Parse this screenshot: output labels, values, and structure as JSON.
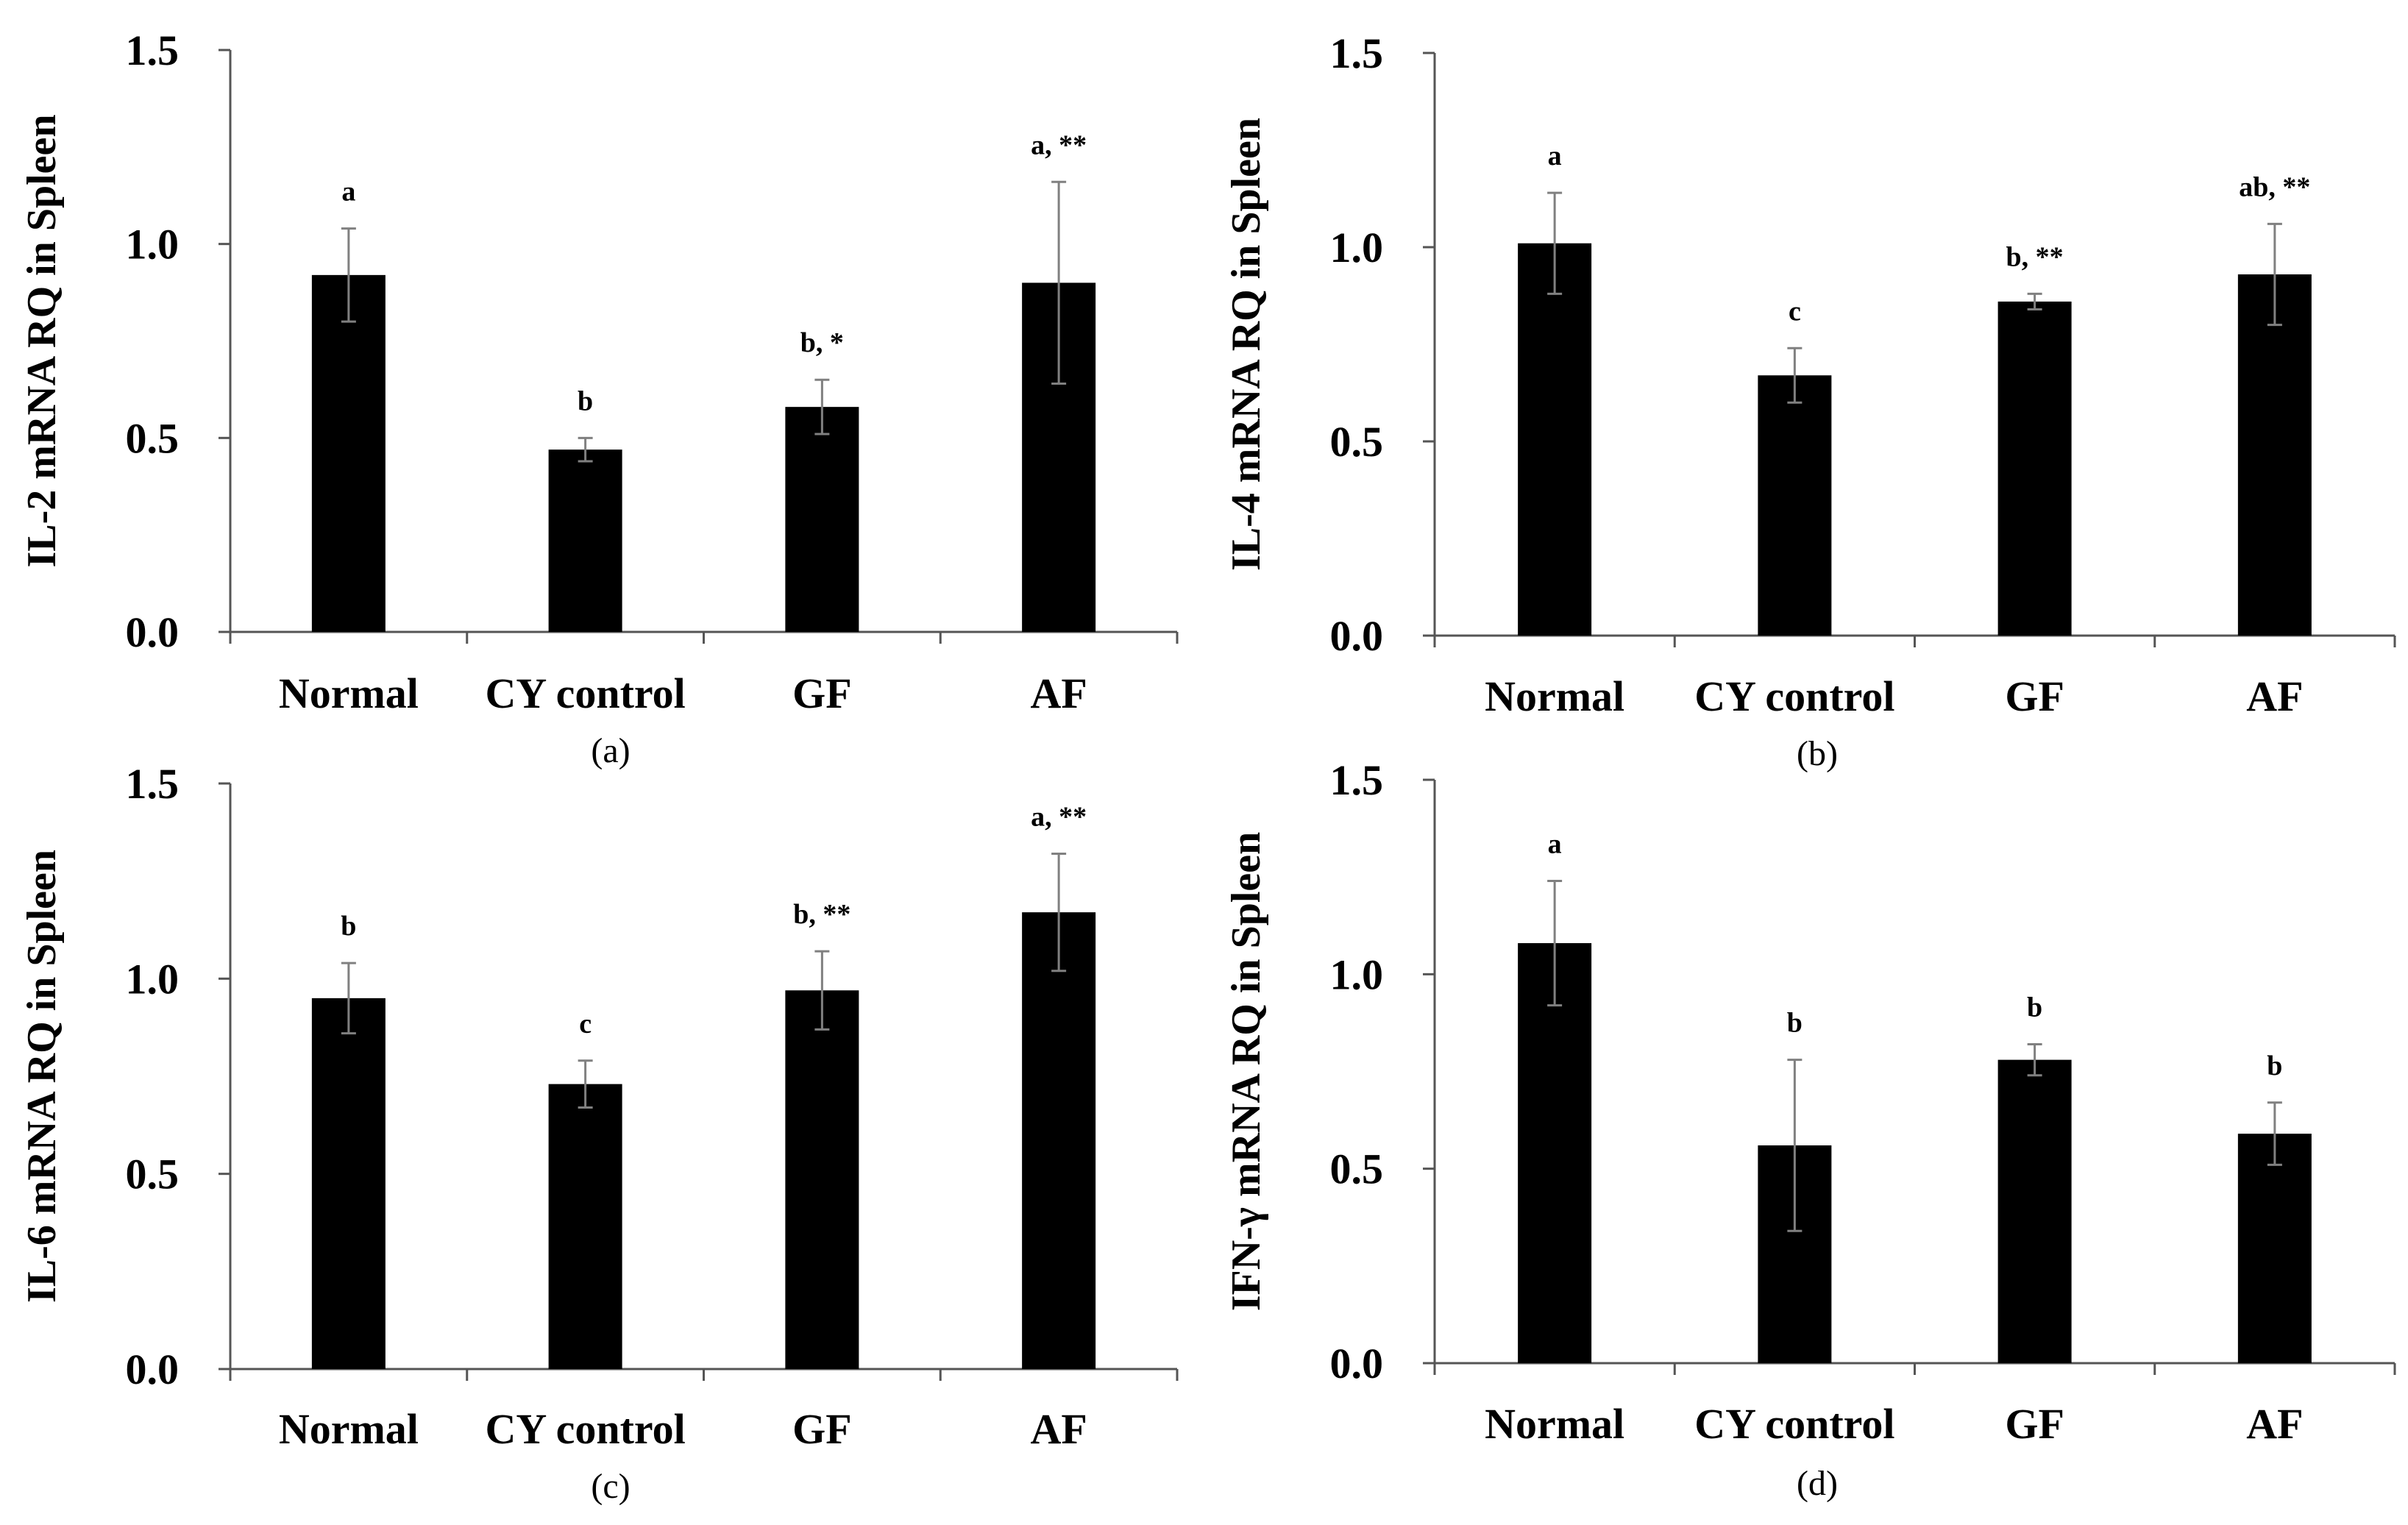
{
  "chart_data": [
    {
      "type": "bar",
      "panel_label": "(a)",
      "ylabel": "IL-2 mRNA RQ in Spleen",
      "xlabel": "",
      "ylim": [
        0,
        1.5
      ],
      "yticks": [
        "0.0",
        "0.5",
        "1.0",
        "1.5"
      ],
      "categories": [
        "Normal",
        "CY control",
        "GF",
        "AF"
      ],
      "values": [
        0.92,
        0.47,
        0.58,
        0.9
      ],
      "errors": [
        0.12,
        0.03,
        0.07,
        0.26
      ],
      "annotations": [
        "a",
        "b",
        "b, *",
        "a, **"
      ]
    },
    {
      "type": "bar",
      "panel_label": "(b)",
      "ylabel": "IL-4 mRNA RQ in Spleen",
      "xlabel": "",
      "ylim": [
        0,
        1.5
      ],
      "yticks": [
        "0.0",
        "0.5",
        "1.0",
        "1.5"
      ],
      "categories": [
        "Normal",
        "CY control",
        "GF",
        "AF"
      ],
      "values": [
        1.01,
        0.67,
        0.86,
        0.93
      ],
      "errors": [
        0.13,
        0.07,
        0.02,
        0.13
      ],
      "annotations": [
        "a",
        "c",
        "b, **",
        "ab, **"
      ]
    },
    {
      "type": "bar",
      "panel_label": "(c)",
      "ylabel": "IL-6 mRNA RQ in Spleen",
      "xlabel": "",
      "ylim": [
        0,
        1.5
      ],
      "yticks": [
        "0.0",
        "0.5",
        "1.0",
        "1.5"
      ],
      "categories": [
        "Normal",
        "CY control",
        "GF",
        "AF"
      ],
      "values": [
        0.95,
        0.73,
        0.97,
        1.17
      ],
      "errors": [
        0.09,
        0.06,
        0.1,
        0.15
      ],
      "annotations": [
        "b",
        "c",
        "b, **",
        "a, **"
      ]
    },
    {
      "type": "bar",
      "panel_label": "(d)",
      "ylabel": "IFN-γ mRNA RQ in Spleen",
      "xlabel": "",
      "ylim": [
        0,
        1.5
      ],
      "yticks": [
        "0.0",
        "0.5",
        "1.0",
        "1.5"
      ],
      "categories": [
        "Normal",
        "CY control",
        "GF",
        "AF"
      ],
      "values": [
        1.08,
        0.56,
        0.78,
        0.59
      ],
      "errors": [
        0.16,
        0.22,
        0.04,
        0.08
      ],
      "annotations": [
        "a",
        "b",
        "b",
        "b"
      ]
    }
  ],
  "colors": {
    "bar": "#000000",
    "error_bar": "#808080",
    "axis": "#555555"
  }
}
